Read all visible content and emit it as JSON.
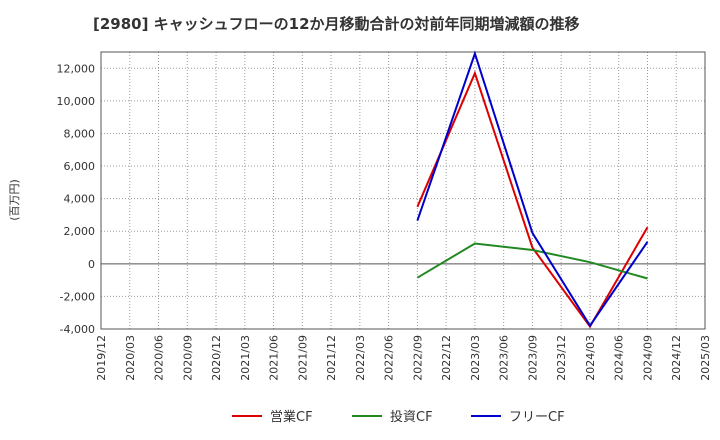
{
  "chart_data": {
    "type": "line",
    "title": "[2980]  キャッシュフローの12か月移動合計の対前年同期増減額の推移",
    "ylabel": "(百万円)",
    "xlabel": "",
    "ylim": [
      -4000,
      13000
    ],
    "yticks": [
      -4000,
      -2000,
      0,
      2000,
      4000,
      6000,
      8000,
      10000,
      12000
    ],
    "ytick_labels": [
      "-4,000",
      "-2,000",
      "0",
      "2,000",
      "4,000",
      "6,000",
      "8,000",
      "10,000",
      "12,000"
    ],
    "categories": [
      "2019/12",
      "2020/03",
      "2020/06",
      "2020/09",
      "2020/12",
      "2021/03",
      "2021/06",
      "2021/09",
      "2021/12",
      "2022/03",
      "2022/06",
      "2022/09",
      "2022/12",
      "2023/03",
      "2023/06",
      "2023/09",
      "2023/12",
      "2024/03",
      "2024/06",
      "2024/09",
      "2024/12",
      "2025/03"
    ],
    "grid": true,
    "legend_position": "bottom",
    "series": [
      {
        "name": "営業CF",
        "color": "#dd0000",
        "points": [
          [
            "2022/09",
            3500
          ],
          [
            "2023/03",
            11700
          ],
          [
            "2023/09",
            1000
          ],
          [
            "2024/03",
            -3850
          ],
          [
            "2024/09",
            2250
          ]
        ]
      },
      {
        "name": "投資CF",
        "color": "#228822",
        "points": [
          [
            "2022/09",
            -850
          ],
          [
            "2023/03",
            1250
          ],
          [
            "2023/09",
            850
          ],
          [
            "2024/03",
            100
          ],
          [
            "2024/09",
            -900
          ]
        ]
      },
      {
        "name": "フリーCF",
        "color": "#0000cc",
        "points": [
          [
            "2022/09",
            2650
          ],
          [
            "2023/03",
            12900
          ],
          [
            "2023/09",
            1900
          ],
          [
            "2024/03",
            -3800
          ],
          [
            "2024/09",
            1350
          ]
        ]
      }
    ]
  }
}
